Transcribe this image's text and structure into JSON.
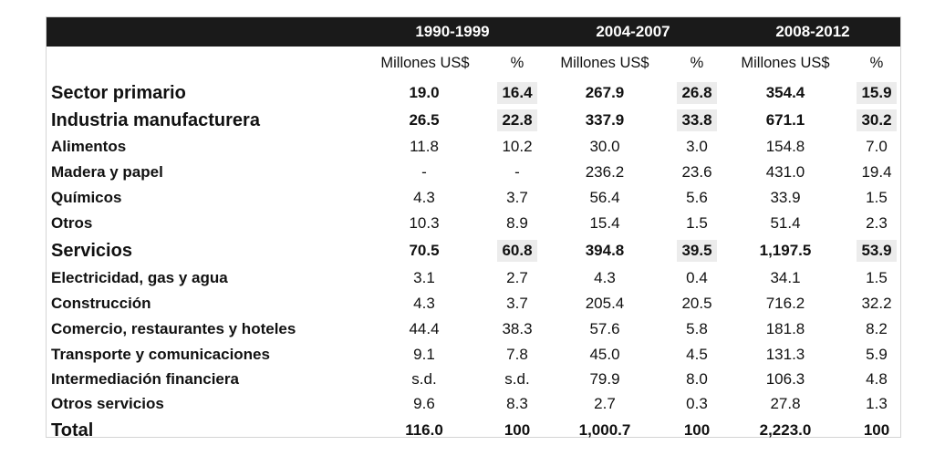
{
  "periods": [
    "1990-1999",
    "2004-2007",
    "2008-2012"
  ],
  "units": [
    "Millones US$",
    "%",
    "Millones US$",
    "%",
    "Millones US$",
    "%"
  ],
  "rows": [
    {
      "label": "Sector primario",
      "major": true,
      "values": [
        "19.0",
        "16.4",
        "267.9",
        "26.8",
        "354.4",
        "15.9"
      ]
    },
    {
      "label": "Industria manufacturera",
      "major": true,
      "values": [
        "26.5",
        "22.8",
        "337.9",
        "33.8",
        "671.1",
        "30.2"
      ]
    },
    {
      "label": "Alimentos",
      "major": false,
      "values": [
        "11.8",
        "10.2",
        "30.0",
        "3.0",
        "154.8",
        "7.0"
      ]
    },
    {
      "label": "Madera y papel",
      "major": false,
      "values": [
        "-",
        "-",
        "236.2",
        "23.6",
        "431.0",
        "19.4"
      ]
    },
    {
      "label": "Químicos",
      "major": false,
      "values": [
        "4.3",
        "3.7",
        "56.4",
        "5.6",
        "33.9",
        "1.5"
      ]
    },
    {
      "label": "Otros",
      "major": false,
      "values": [
        "10.3",
        "8.9",
        "15.4",
        "1.5",
        "51.4",
        "2.3"
      ]
    },
    {
      "label": "Servicios",
      "major": true,
      "values": [
        "70.5",
        "60.8",
        "394.8",
        "39.5",
        "1,197.5",
        "53.9"
      ]
    },
    {
      "label": "Electricidad, gas y agua",
      "major": false,
      "values": [
        "3.1",
        "2.7",
        "4.3",
        "0.4",
        "34.1",
        "1.5"
      ]
    },
    {
      "label": "Construcción",
      "major": false,
      "values": [
        "4.3",
        "3.7",
        "205.4",
        "20.5",
        "716.2",
        "32.2"
      ]
    },
    {
      "label": "Comercio, restaurantes y hoteles",
      "major": false,
      "values": [
        "44.4",
        "38.3",
        "57.6",
        "5.8",
        "181.8",
        "8.2"
      ]
    },
    {
      "label": "Transporte y comunicaciones",
      "major": false,
      "values": [
        "9.1",
        "7.8",
        "45.0",
        "4.5",
        "131.3",
        "5.9"
      ]
    },
    {
      "label": "Intermediación financiera",
      "major": false,
      "values": [
        "s.d.",
        "s.d.",
        "79.9",
        "8.0",
        "106.3",
        "4.8"
      ]
    },
    {
      "label": "Otros servicios",
      "major": false,
      "values": [
        "9.6",
        "8.3",
        "2.7",
        "0.3",
        "27.8",
        "1.3"
      ]
    },
    {
      "label": "Total",
      "major": true,
      "values": [
        "116.0",
        "100",
        "1,000.7",
        "100",
        "2,223.0",
        "100"
      ]
    }
  ]
}
